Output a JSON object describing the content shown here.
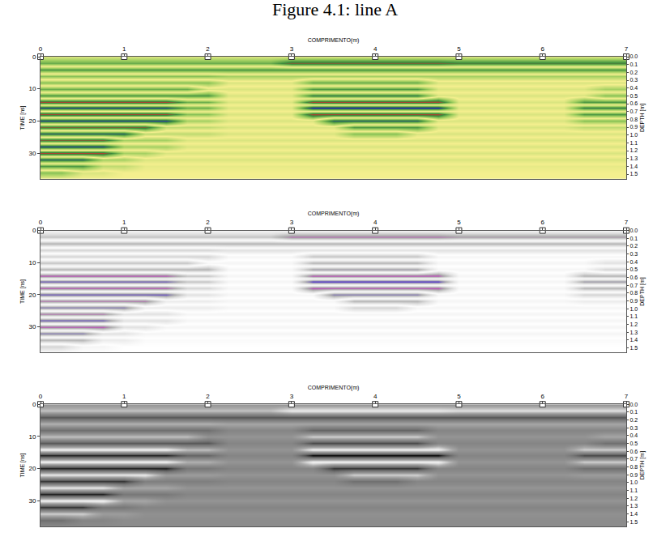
{
  "title": "Figure 4.1: line A",
  "chart_data": {
    "type": "heatmap",
    "x_label": "COMPRIMENTO(m)",
    "y_label": "TIME [ns]",
    "y2_label": "DEPTH [m]",
    "marker": "square",
    "x": [
      0,
      0.25,
      0.5,
      0.75,
      1,
      1.25,
      1.5,
      1.75,
      2,
      2.25,
      2.5,
      2.75,
      3,
      3.25,
      3.5,
      3.75,
      4,
      4.25,
      4.5,
      4.75,
      5,
      5.25,
      5.5,
      5.75,
      6,
      6.25,
      6.5,
      6.75,
      7
    ],
    "y": [
      0,
      2,
      4,
      6,
      8,
      10,
      12,
      14,
      16,
      18,
      20,
      22,
      24,
      26,
      28,
      30,
      32,
      34,
      36,
      38
    ],
    "cells": [
      [
        0.1,
        0.1,
        0.1,
        0.1,
        0.1,
        0.1,
        0.1,
        0.1,
        0.1,
        0.1,
        0.1,
        0.1,
        0.1,
        0.1,
        0.1,
        0.1,
        0.1,
        0.1,
        0.1,
        0.1,
        0.1,
        0.1,
        0.1,
        0.1,
        0.1,
        0.1,
        0.1,
        0.1,
        0.1
      ],
      [
        0.5,
        0.5,
        0.5,
        0.5,
        0.5,
        0.5,
        0.5,
        0.5,
        0.5,
        0.5,
        0.5,
        0.5,
        0.8,
        0.8,
        0.8,
        0.8,
        0.8,
        0.8,
        0.8,
        0.8,
        0.7,
        0.7,
        0.7,
        0.7,
        0.7,
        0.7,
        0.7,
        0.7,
        0.7
      ],
      [
        -0.6,
        -0.6,
        -0.6,
        -0.6,
        -0.6,
        -0.6,
        -0.6,
        -0.6,
        -0.6,
        -0.6,
        -0.6,
        -0.6,
        -0.6,
        -0.6,
        -0.6,
        -0.6,
        -0.6,
        -0.6,
        -0.6,
        -0.6,
        -0.6,
        -0.6,
        -0.6,
        -0.6,
        -0.6,
        -0.6,
        -0.6,
        -0.6,
        -0.6
      ],
      [
        0.4,
        0.4,
        0.4,
        0.4,
        0.4,
        0.4,
        0.4,
        0.4,
        0.4,
        0.3,
        0.3,
        0.3,
        0.3,
        0.3,
        0.3,
        0.3,
        0.3,
        0.3,
        0.3,
        0.3,
        0.3,
        0.3,
        0.3,
        0.3,
        0.3,
        0.3,
        0.3,
        0.3,
        0.3
      ],
      [
        -0.4,
        -0.4,
        -0.4,
        -0.4,
        -0.4,
        -0.4,
        -0.4,
        -0.4,
        -0.4,
        -0.1,
        -0.1,
        -0.1,
        -0.1,
        -0.5,
        -0.5,
        -0.5,
        -0.5,
        -0.5,
        -0.5,
        -0.1,
        -0.1,
        -0.1,
        -0.1,
        -0.1,
        -0.1,
        -0.1,
        -0.1,
        -0.1,
        -0.1
      ],
      [
        0.5,
        0.5,
        0.5,
        0.5,
        0.5,
        0.5,
        0.5,
        0.5,
        0.1,
        0.1,
        0.1,
        0.1,
        0.1,
        0.6,
        0.6,
        0.6,
        0.6,
        0.6,
        0.6,
        0.1,
        0.1,
        0.1,
        0.1,
        0.1,
        0.1,
        0.1,
        0.1,
        0.3,
        0.3
      ],
      [
        -0.6,
        -0.6,
        -0.6,
        -0.6,
        -0.6,
        -0.6,
        -0.6,
        -0.6,
        -0.6,
        -0.1,
        -0.1,
        -0.1,
        -0.1,
        -0.7,
        -0.7,
        -0.7,
        -0.7,
        -0.7,
        -0.7,
        -0.1,
        -0.1,
        -0.1,
        -0.1,
        -0.1,
        -0.1,
        -0.1,
        -0.1,
        -0.4,
        -0.4
      ],
      [
        0.9,
        0.9,
        0.9,
        0.9,
        0.9,
        0.9,
        0.9,
        0.5,
        0.5,
        0.1,
        0.1,
        0.1,
        0.1,
        0.9,
        0.9,
        0.9,
        0.9,
        0.9,
        0.9,
        0.9,
        0.1,
        0.1,
        0.1,
        0.1,
        0.1,
        0.1,
        0.6,
        0.6,
        0.6
      ],
      [
        -0.9,
        -0.9,
        -0.9,
        -0.9,
        -0.9,
        -0.9,
        -0.9,
        -0.5,
        -0.5,
        -0.1,
        -0.1,
        -0.1,
        -0.1,
        -1,
        -1,
        -1,
        -1,
        -1,
        -1,
        -1,
        -0.1,
        -0.1,
        -0.1,
        -0.1,
        -0.1,
        -0.1,
        -0.7,
        -0.7,
        -0.7
      ],
      [
        0.9,
        0.9,
        0.9,
        0.9,
        0.9,
        0.9,
        0.9,
        0.4,
        0.4,
        0.1,
        0.1,
        0.1,
        0.1,
        0.9,
        0.9,
        0.9,
        0.9,
        0.9,
        0.9,
        0.9,
        0.1,
        0.1,
        0.1,
        0.1,
        0.1,
        0.1,
        0.6,
        0.6,
        0.6
      ],
      [
        -0.9,
        -0.9,
        -0.9,
        -0.9,
        -0.9,
        -0.9,
        -0.9,
        -0.3,
        -0.3,
        -0.1,
        -0.1,
        -0.1,
        -0.1,
        -0.1,
        -0.8,
        -0.8,
        -0.8,
        -0.8,
        -0.8,
        -0.1,
        -0.1,
        -0.1,
        -0.1,
        -0.1,
        -0.1,
        -0.1,
        -0.4,
        -0.4,
        -0.4
      ],
      [
        0.8,
        0.8,
        0.8,
        0.8,
        0.8,
        0.8,
        0.2,
        0.2,
        0.2,
        0.1,
        0.1,
        0.1,
        0.1,
        0.1,
        0.1,
        0.6,
        0.6,
        0.6,
        0.6,
        0.1,
        0.1,
        0.1,
        0.1,
        0.1,
        0.1,
        0.1,
        0.2,
        0.2,
        0.2
      ],
      [
        -0.8,
        -0.8,
        -0.8,
        -0.8,
        -0.8,
        -0.2,
        -0.2,
        -0.2,
        -0.2,
        -0.1,
        -0.1,
        -0.1,
        -0.1,
        -0.1,
        -0.1,
        -0.4,
        -0.4,
        -0.4,
        -0.1,
        -0.1,
        -0.1,
        -0.1,
        -0.1,
        -0.1,
        -0.1,
        -0.1,
        -0.1,
        -0.1,
        -0.1
      ],
      [
        0.8,
        0.8,
        0.8,
        0.8,
        0.3,
        0.3,
        0.3,
        0.1,
        0.1,
        0.1,
        0.1,
        0.1,
        0.1,
        0.1,
        0.1,
        0.1,
        0.1,
        0.1,
        0.1,
        0.1,
        0.1,
        0.1,
        0.1,
        0.1,
        0.1,
        0.1,
        0.1,
        0.1,
        0.1
      ],
      [
        -0.9,
        -0.9,
        -0.9,
        -0.9,
        -0.3,
        -0.3,
        -0.3,
        -0.1,
        -0.1,
        -0.1,
        -0.1,
        -0.1,
        -0.1,
        -0.1,
        -0.1,
        -0.1,
        -0.1,
        -0.1,
        -0.1,
        -0.1,
        -0.1,
        -0.1,
        -0.1,
        -0.1,
        -0.1,
        -0.1,
        -0.1,
        -0.1,
        -0.1
      ],
      [
        0.9,
        0.9,
        0.9,
        0.9,
        0.3,
        0.3,
        0.1,
        0.1,
        0.1,
        0.1,
        0.1,
        0.1,
        0.1,
        0.1,
        0.1,
        0.1,
        0.1,
        0.1,
        0.1,
        0.1,
        0.1,
        0.1,
        0.1,
        0.1,
        0.1,
        0.1,
        0.1,
        0.1,
        0.1
      ],
      [
        -0.8,
        -0.8,
        -0.8,
        -0.3,
        -0.3,
        -0.1,
        -0.1,
        -0.1,
        -0.1,
        -0.1,
        -0.1,
        -0.1,
        -0.1,
        -0.1,
        -0.1,
        -0.1,
        -0.1,
        -0.1,
        -0.1,
        -0.1,
        -0.1,
        -0.1,
        -0.1,
        -0.1,
        -0.1,
        -0.1,
        -0.1,
        -0.1,
        -0.1
      ],
      [
        0.6,
        0.6,
        0.6,
        0.2,
        0.2,
        0.05,
        0.05,
        0.05,
        0.05,
        0.05,
        0.05,
        0.05,
        0.05,
        0.05,
        0.05,
        0.05,
        0.05,
        0.05,
        0.05,
        0.05,
        0.05,
        0.05,
        0.05,
        0.05,
        0.05,
        0.05,
        0.05,
        0.05,
        0.05
      ],
      [
        -0.4,
        -0.4,
        -0.1,
        -0.1,
        0,
        0,
        0,
        0,
        0,
        0,
        0,
        0,
        0,
        0,
        0,
        0,
        0,
        0,
        0,
        0,
        0,
        0,
        0,
        0,
        0,
        0,
        0,
        0,
        0
      ],
      [
        0,
        0,
        0,
        0,
        0,
        0,
        0,
        0,
        0,
        0,
        0,
        0,
        0,
        0,
        0,
        0,
        0,
        0,
        0,
        0,
        0,
        0,
        0,
        0,
        0,
        0,
        0,
        0,
        0
      ]
    ],
    "zlim": [
      -1,
      1
    ],
    "xlim": [
      0,
      7
    ],
    "xticks": [
      0,
      1,
      2,
      3,
      4,
      5,
      6,
      7
    ],
    "ylim": [
      38,
      0
    ],
    "yticks": [
      0,
      10,
      20,
      30
    ],
    "y2lim": [
      1.56,
      0
    ],
    "y2ticks": [
      {
        "value": 0,
        "label": "0.0"
      },
      0.1,
      0.2,
      0.3,
      0.4,
      0.5,
      0.6,
      0.7,
      0.8,
      0.9,
      {
        "value": 1,
        "label": "1.0"
      },
      1.1,
      1.2,
      1.3,
      1.4,
      1.5
    ],
    "panels": [
      {
        "colors": [
          "#2323b4",
          "#3a8c3c",
          "#9ccd5e",
          "#f4ef8e",
          "#9ccd5e",
          "#3a8c3c",
          "#d3272b"
        ]
      },
      {
        "colors": [
          "#4a2ad0",
          "#a9a9a9",
          "#dedede",
          "#ffffff",
          "#dedede",
          "#a9a9a9",
          "#c423c0"
        ]
      },
      {
        "colors": [
          "#000000",
          "#4f4f4f",
          "#767676",
          "#8c8c8c",
          "#a9a9a9",
          "#dcdcdc",
          "#ffffff"
        ]
      }
    ]
  }
}
